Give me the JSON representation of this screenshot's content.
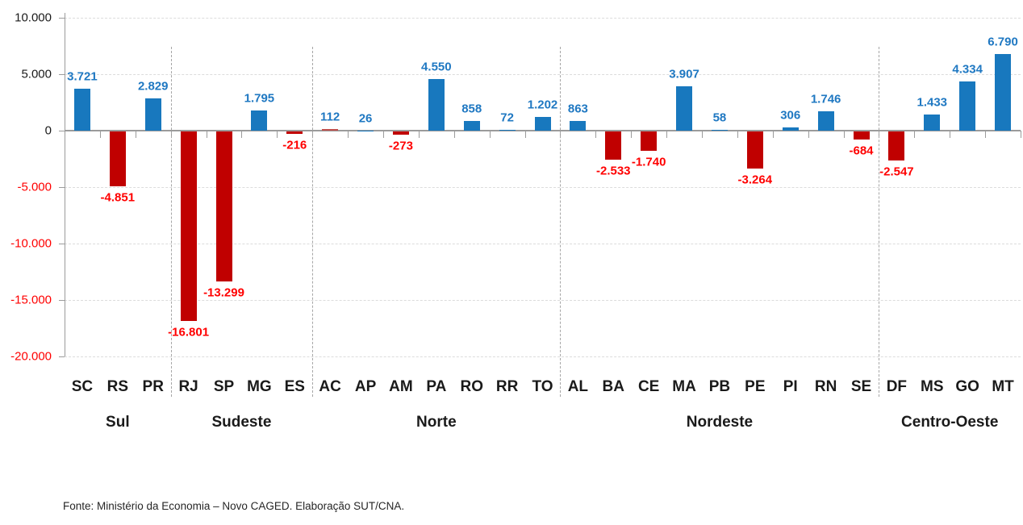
{
  "source_note": "Fonte: Ministério da Economia – Novo CAGED. Elaboração SUT/CNA.",
  "chart_data": {
    "type": "bar",
    "title": "",
    "xlabel": "",
    "ylabel": "",
    "ylim": [
      -20000,
      10000
    ],
    "grid": true,
    "legend": false,
    "yticks": [
      {
        "value": 10000,
        "label": "10.000"
      },
      {
        "value": 5000,
        "label": "5.000"
      },
      {
        "value": 0,
        "label": "0"
      },
      {
        "value": -5000,
        "label": "-5.000"
      },
      {
        "value": -10000,
        "label": "-10.000"
      },
      {
        "value": -15000,
        "label": "-15.000"
      },
      {
        "value": -20000,
        "label": "-20.000"
      }
    ],
    "regions": [
      {
        "name": "Sul",
        "states": [
          {
            "label": "SC",
            "value": 3721,
            "display": "3.721"
          },
          {
            "label": "RS",
            "value": -4851,
            "display": "-4.851"
          },
          {
            "label": "PR",
            "value": 2829,
            "display": "2.829"
          }
        ]
      },
      {
        "name": "Sudeste",
        "states": [
          {
            "label": "RJ",
            "value": -16801,
            "display": "-16.801"
          },
          {
            "label": "SP",
            "value": -13299,
            "display": "-13.299"
          },
          {
            "label": "MG",
            "value": 1795,
            "display": "1.795"
          },
          {
            "label": "ES",
            "value": -216,
            "display": "-216"
          }
        ]
      },
      {
        "name": "Norte",
        "states": [
          {
            "label": "AC",
            "value": 112,
            "display": "112",
            "bar_color": "#C0504D"
          },
          {
            "label": "AP",
            "value": 26,
            "display": "26"
          },
          {
            "label": "AM",
            "value": -273,
            "display": "-273"
          },
          {
            "label": "PA",
            "value": 4550,
            "display": "4.550"
          },
          {
            "label": "RO",
            "value": 858,
            "display": "858"
          },
          {
            "label": "RR",
            "value": 72,
            "display": "72"
          },
          {
            "label": "TO",
            "value": 1202,
            "display": "1.202"
          }
        ]
      },
      {
        "name": "Nordeste",
        "states": [
          {
            "label": "AL",
            "value": 863,
            "display": "863"
          },
          {
            "label": "BA",
            "value": -2533,
            "display": "-2.533"
          },
          {
            "label": "CE",
            "value": -1740,
            "display": "-1.740"
          },
          {
            "label": "MA",
            "value": 3907,
            "display": "3.907"
          },
          {
            "label": "PB",
            "value": 58,
            "display": "58"
          },
          {
            "label": "PE",
            "value": -3264,
            "display": "-3.264"
          },
          {
            "label": "PI",
            "value": 306,
            "display": "306"
          },
          {
            "label": "RN",
            "value": 1746,
            "display": "1.746"
          },
          {
            "label": "SE",
            "value": -684,
            "display": "-684"
          }
        ]
      },
      {
        "name": "Centro-Oeste",
        "states": [
          {
            "label": "DF",
            "value": -2547,
            "display": "-2.547"
          },
          {
            "label": "MS",
            "value": 1433,
            "display": "1.433"
          },
          {
            "label": "GO",
            "value": 4334,
            "display": "4.334"
          },
          {
            "label": "MT",
            "value": 6790,
            "display": "6.790"
          }
        ]
      }
    ],
    "colors": {
      "positive_bar": "#1878BE",
      "negative_bar": "#C00000",
      "positive_label": "#1F78C2",
      "negative_label": "#FF0000",
      "axis": "#9B9B9B",
      "gridline": "#DCDCDC",
      "separator": "#A6A6A6",
      "tick_label": "#1A1A1A",
      "tick_label_negative": "#FF0000"
    }
  }
}
